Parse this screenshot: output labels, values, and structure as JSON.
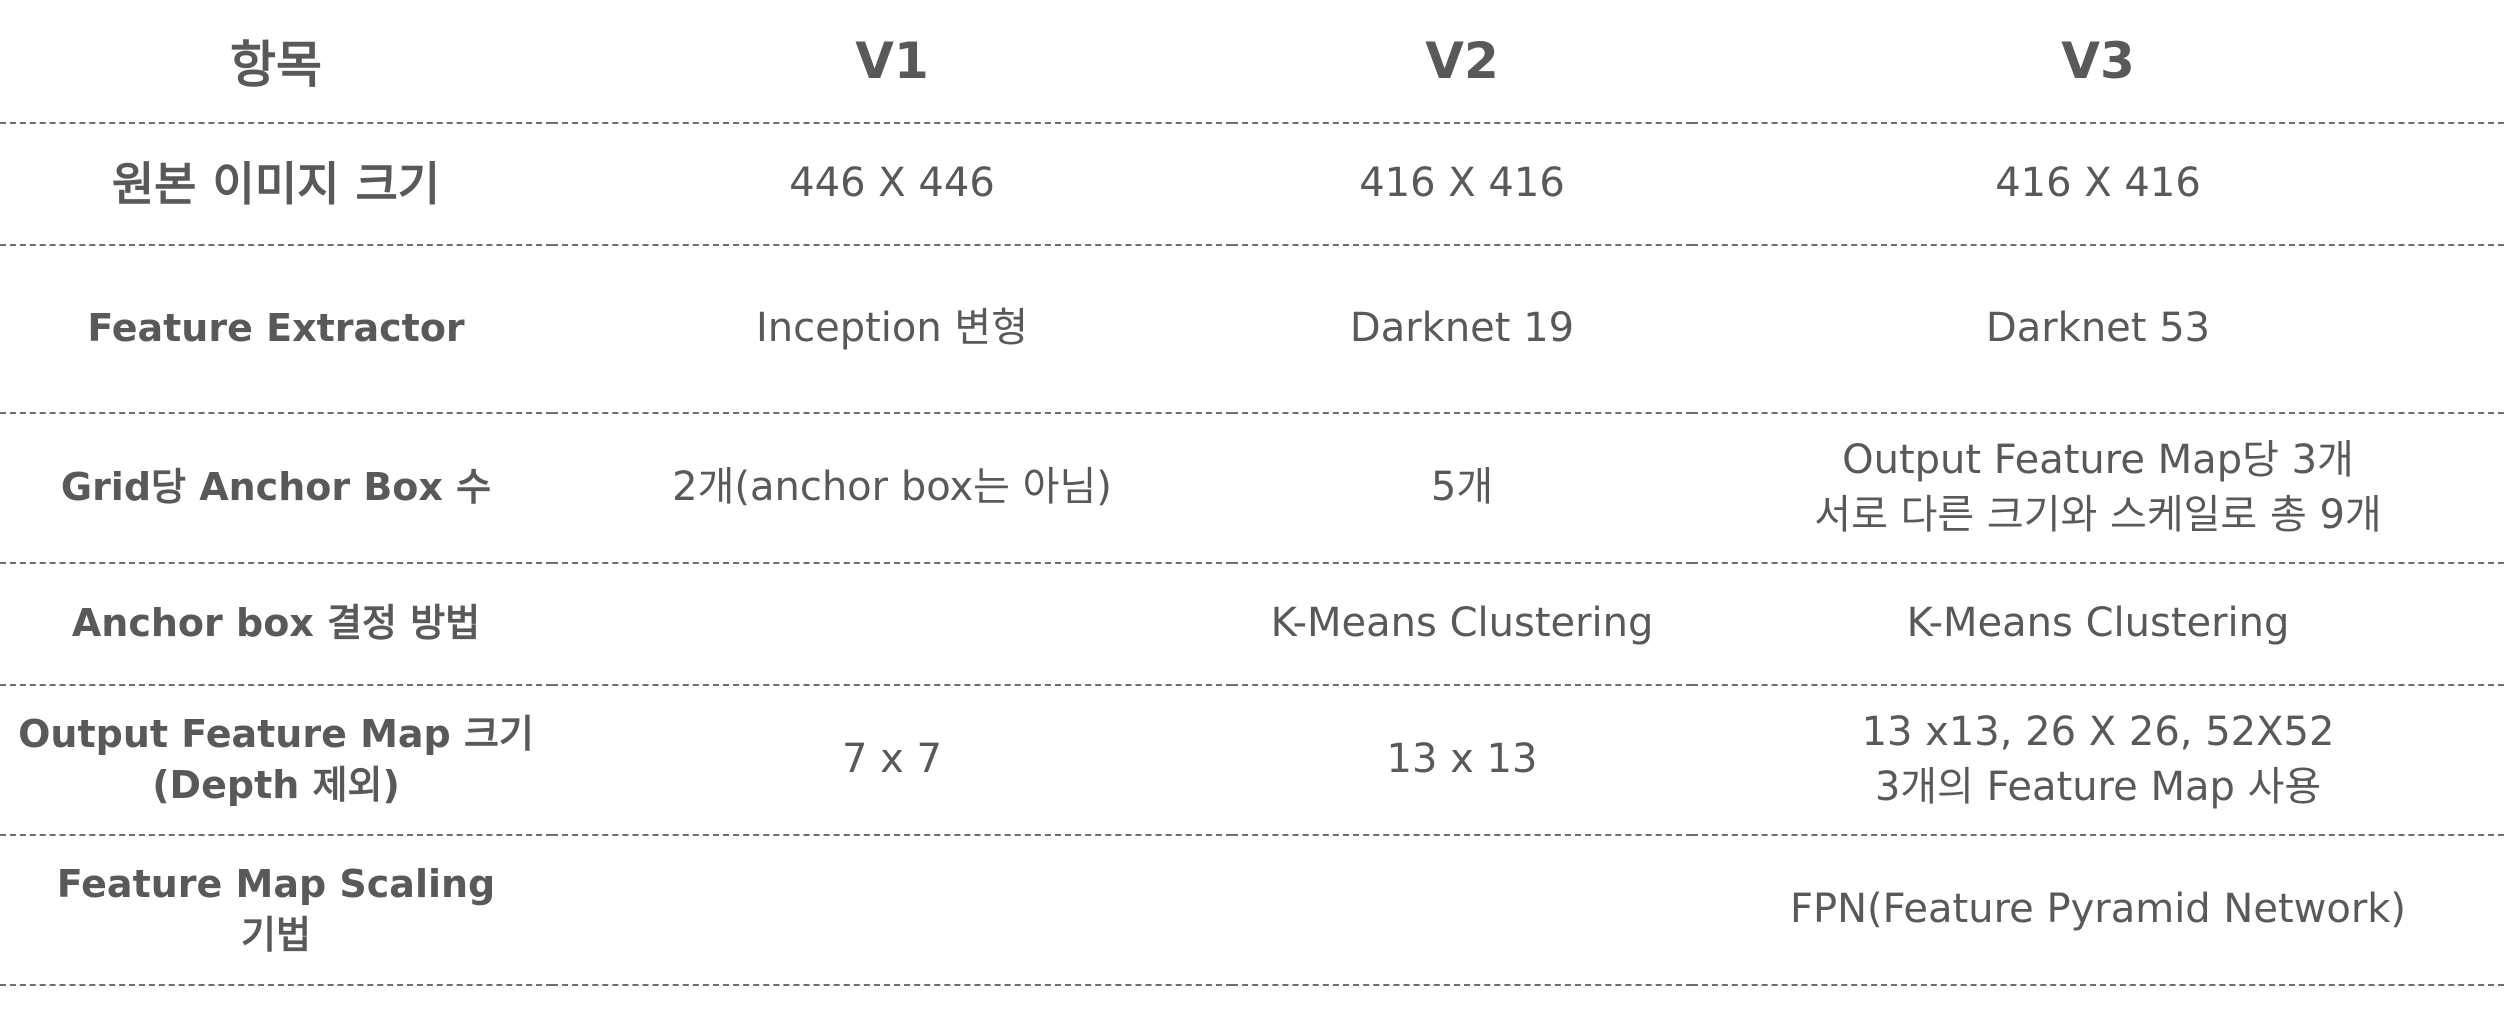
{
  "header": {
    "item": "항목",
    "v1": "V1",
    "v2": "V2",
    "v3": "V3"
  },
  "rows": [
    {
      "label": "원본 이미지 크기",
      "v1": "446 X 446",
      "v2": "416 X 416",
      "v3": "416 X 416"
    },
    {
      "label": "Feature Extractor",
      "v1": "Inception 변형",
      "v2": "Darknet 19",
      "v3": "Darknet 53"
    },
    {
      "label": "Grid당 Anchor Box 수",
      "v1": "2개(anchor box는 아님)",
      "v2": "5개",
      "v3": "Output Feature Map당 3개\n서로 다른 크기와 스케일로 총 9개"
    },
    {
      "label": "Anchor box 결정 방법",
      "v1": "",
      "v2": "K-Means Clustering",
      "v3": "K-Means Clustering"
    },
    {
      "label": "Output Feature Map 크기\n(Depth 제외)",
      "v1": "7 x 7",
      "v2": "13 x 13",
      "v3": "13 x13, 26 X 26, 52X52\n3개의 Feature Map 사용"
    },
    {
      "label": "Feature Map Scaling\n기법",
      "v1": "",
      "v2": "",
      "v3": "FPN(Feature Pyramid Network)"
    }
  ]
}
